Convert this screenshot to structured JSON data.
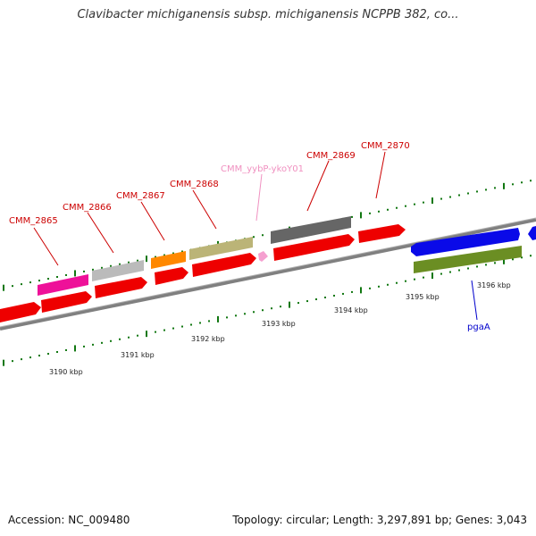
{
  "title": "Clavibacter michiganensis subsp. michiganensis NCPPB 382, co...",
  "footer": {
    "accession": "Accession: NC_009480",
    "summary": "Topology: circular; Length: 3,297,891 bp; Genes: 3,043"
  },
  "colors": {
    "label_red": "#cc0000",
    "label_pink": "#f090c0",
    "label_blue": "#0000cc",
    "tick_green": "#117711",
    "backbone": "#808080"
  },
  "kbp_labels": [
    "3190 kbp",
    "3191 kbp",
    "3192 kbp",
    "3193 kbp",
    "3194 kbp",
    "3195 kbp",
    "3196 kbp"
  ],
  "gene_labels": [
    {
      "text": "CMM_2865",
      "color": "#cc0000"
    },
    {
      "text": "CMM_2866",
      "color": "#cc0000"
    },
    {
      "text": "CMM_2867",
      "color": "#cc0000"
    },
    {
      "text": "CMM_2868",
      "color": "#cc0000"
    },
    {
      "text": "CMM_yybP-ykoY01",
      "color": "#f090c0"
    },
    {
      "text": "CMM_2869",
      "color": "#cc0000"
    },
    {
      "text": "CMM_2870",
      "color": "#cc0000"
    },
    {
      "text": "pgaA",
      "color": "#0000cc"
    }
  ]
}
